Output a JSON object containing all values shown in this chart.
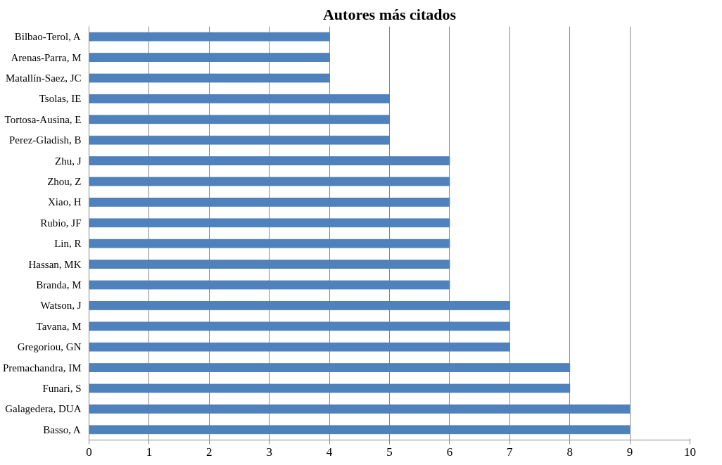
{
  "chart_data": {
    "type": "bar",
    "orientation": "horizontal",
    "title": "Autores más citados",
    "categories": [
      "Bilbao-Terol, A",
      "Arenas-Parra, M",
      "Matallín-Saez, JC",
      "Tsolas, IE",
      "Tortosa-Ausina, E",
      "Perez-Gladish, B",
      "Zhu, J",
      "Zhou, Z",
      "Xiao, H",
      "Rubio, JF",
      "Lin, R",
      "Hassan, MK",
      "Branda, M",
      "Watson, J",
      "Tavana, M",
      "Gregoriou, GN",
      "Premachandra, IM",
      "Funari, S",
      "Galagedera, DUA",
      "Basso, A"
    ],
    "values": [
      4,
      4,
      4,
      5,
      5,
      5,
      6,
      6,
      6,
      6,
      6,
      6,
      6,
      7,
      7,
      7,
      8,
      8,
      9,
      9
    ],
    "color": "#4f81bd",
    "xlim": [
      0,
      10
    ],
    "xticks": [
      0,
      1,
      2,
      3,
      4,
      5,
      6,
      7,
      8,
      9,
      10
    ],
    "grid": "x"
  }
}
